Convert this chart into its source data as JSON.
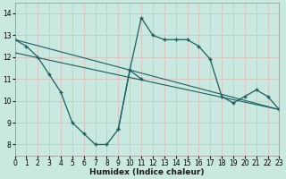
{
  "xlabel": "Humidex (Indice chaleur)",
  "bg_color": "#c8e8e0",
  "grid_color": "#e0b8b8",
  "line_color": "#1a6060",
  "xlim": [
    0,
    23
  ],
  "ylim": [
    7.5,
    14.5
  ],
  "yticks": [
    8,
    9,
    10,
    11,
    12,
    13,
    14
  ],
  "xticks": [
    0,
    1,
    2,
    3,
    4,
    5,
    6,
    7,
    8,
    9,
    10,
    11,
    12,
    13,
    14,
    15,
    16,
    17,
    18,
    19,
    20,
    21,
    22,
    23
  ],
  "series": [
    {
      "x": [
        0,
        1,
        2,
        3,
        4,
        5,
        6,
        7,
        8,
        9,
        10,
        11
      ],
      "y": [
        12.8,
        12.5,
        12.0,
        11.2,
        10.4,
        9.0,
        8.5,
        8.0,
        8.0,
        8.7,
        11.4,
        11.0
      ],
      "marker": "+",
      "ms": 3,
      "lw": 0.9
    },
    {
      "x": [
        0,
        1,
        2,
        3,
        18,
        19,
        20,
        21,
        22,
        23
      ],
      "y": [
        12.8,
        12.4,
        12.0,
        11.7,
        10.4,
        10.2,
        10.0,
        10.3,
        10.1,
        9.6
      ],
      "marker": "+",
      "ms": 2,
      "lw": 0.8
    },
    {
      "x": [
        0,
        1,
        2,
        3,
        18,
        19,
        20,
        21,
        22,
        23
      ],
      "y": [
        12.8,
        12.3,
        11.9,
        11.5,
        10.1,
        9.9,
        9.8,
        10.0,
        9.8,
        9.6
      ],
      "marker": "+",
      "ms": 2,
      "lw": 0.8
    },
    {
      "x": [
        9,
        10,
        11,
        12,
        13,
        14,
        15,
        16,
        17,
        18,
        19,
        20,
        21,
        22,
        23
      ],
      "y": [
        8.7,
        11.4,
        13.8,
        13.0,
        12.8,
        12.8,
        12.8,
        12.5,
        11.9,
        10.2,
        9.9,
        10.2,
        10.5,
        10.2,
        9.6
      ],
      "marker": "+",
      "ms": 3,
      "lw": 0.9
    }
  ],
  "straight_lines": [
    {
      "x": [
        0,
        23
      ],
      "y": [
        12.8,
        9.6
      ],
      "lw": 0.8
    },
    {
      "x": [
        0,
        23
      ],
      "y": [
        12.2,
        9.6
      ],
      "lw": 0.8
    }
  ]
}
